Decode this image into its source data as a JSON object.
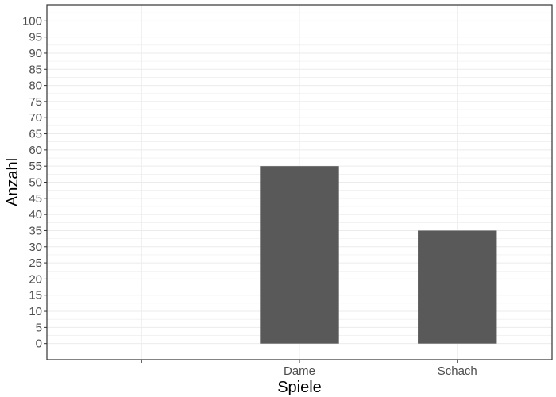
{
  "chart_data": {
    "type": "bar",
    "categories": [
      "",
      "Dame",
      "Schach"
    ],
    "values": [
      null,
      55,
      35
    ],
    "xlabel": "Spiele",
    "ylabel": "Anzahl",
    "ylim": [
      -5,
      105
    ],
    "yticks": [
      0,
      5,
      10,
      15,
      20,
      25,
      30,
      35,
      40,
      45,
      50,
      55,
      60,
      65,
      70,
      75,
      80,
      85,
      90,
      95,
      100
    ],
    "grid": true,
    "legend": "none",
    "bar_color": "#595959",
    "grid_color": "#ebebeb",
    "panel_border_color": "#333333"
  }
}
